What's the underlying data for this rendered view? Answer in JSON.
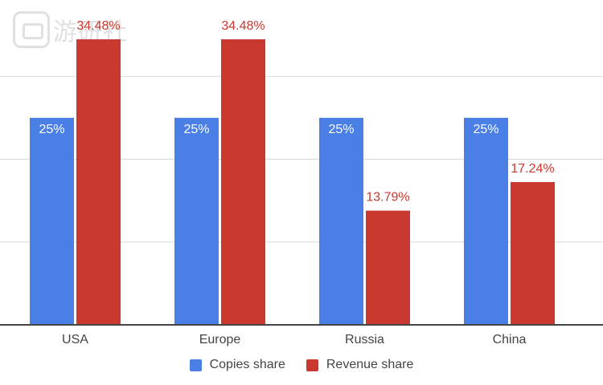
{
  "watermark": {
    "text": "游研社"
  },
  "chart_data": {
    "type": "bar",
    "title": "",
    "xlabel": "",
    "ylabel": "",
    "ylim": [
      0,
      40
    ],
    "categories": [
      "USA",
      "Europe",
      "Russia",
      "China"
    ],
    "series": [
      {
        "name": "Copies share",
        "values": [
          25,
          25,
          25,
          25
        ],
        "labels": [
          "25%",
          "25%",
          "25%",
          "25%"
        ],
        "color": "#4a7fe6"
      },
      {
        "name": "Revenue share",
        "values": [
          34.48,
          34.48,
          13.79,
          17.24
        ],
        "labels": [
          "34.48%",
          "34.48%",
          "13.79%",
          "17.24%"
        ],
        "color": "#c9392f"
      }
    ],
    "colors": {
      "grid": "#d9d9d9",
      "axis": "#444444",
      "copies_label": "#ffffff",
      "revenue_label": "#c9392f"
    }
  }
}
